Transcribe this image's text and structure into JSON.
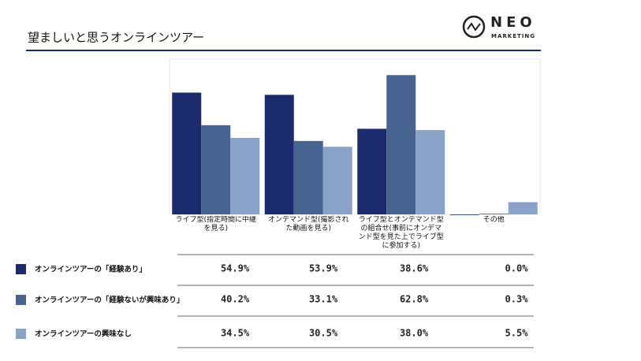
{
  "logo": {
    "name": "NEO",
    "sub": "MARKETING"
  },
  "chart_data": {
    "type": "bar",
    "title": "望ましいと思うオンラインツアー",
    "categories": [
      "ライブ型(指定時間に中継を見る)",
      "オンデマンド型(撮影された動画を見る)",
      "ライブ型とオンデマンド型の組合せ(事前にオンデマンド型を見た上でライブ型に参加する)",
      "その他"
    ],
    "ylim": [
      0,
      70
    ],
    "series": [
      {
        "name": "オンラインツアーの「経験あり」",
        "color": "#1c2a6e",
        "values": [
          54.9,
          53.9,
          38.6,
          0.0
        ],
        "value_labels": [
          "54.9%",
          "53.9%",
          "38.6%",
          "0.0%"
        ]
      },
      {
        "name": "オンラインツアーの「経験ないが興味あり」",
        "color": "#4a6490",
        "values": [
          40.2,
          33.1,
          62.8,
          0.3
        ],
        "value_labels": [
          "40.2%",
          "33.1%",
          "62.8%",
          "0.3%"
        ]
      },
      {
        "name": "オンラインツアーの興味なし",
        "color": "#8aa2c8",
        "values": [
          34.5,
          30.5,
          38.0,
          5.5
        ],
        "value_labels": [
          "34.5%",
          "30.5%",
          "38.0%",
          "5.5%"
        ]
      }
    ]
  }
}
